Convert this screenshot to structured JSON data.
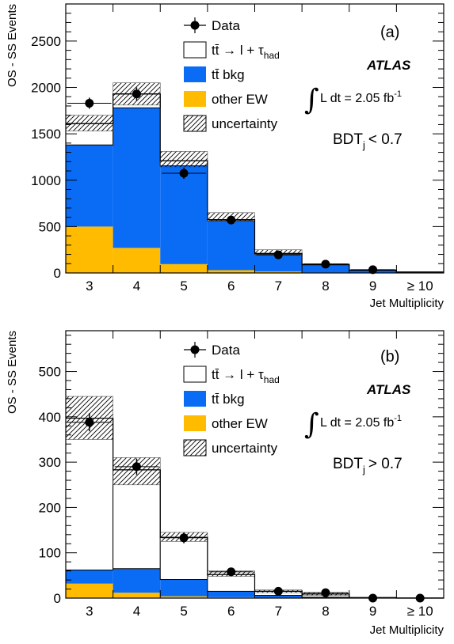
{
  "chart_data": [
    {
      "type": "bar",
      "panel_label": "(a)",
      "experiment": "ATLAS",
      "luminosity": "L dt = 2.05 fb",
      "luminosity_exp": "-1",
      "bdt_cut": "< 0.7",
      "ylabel": "OS - SS Events",
      "xlabel": "Jet Multiplicity",
      "ylim": [
        0,
        2900
      ],
      "yticks": [
        0,
        500,
        1000,
        1500,
        2000,
        2500
      ],
      "categories": [
        "3",
        "4",
        "5",
        "6",
        "7",
        "8",
        "9",
        "≥ 10"
      ],
      "series": [
        {
          "name": "other EW",
          "color": "#ffbb00",
          "values": [
            500,
            270,
            95,
            30,
            15,
            5,
            2,
            0
          ]
        },
        {
          "name": "tt̄ bkg",
          "color": "#0a6cf5",
          "values": [
            880,
            1510,
            1060,
            530,
            185,
            80,
            25,
            8
          ]
        },
        {
          "name": "tt̄ → l + τhad",
          "color": "#ffffff",
          "values": [
            230,
            150,
            55,
            15,
            10,
            5,
            3,
            2
          ]
        }
      ],
      "uncertainty": [
        [
          1530,
          1700
        ],
        [
          1810,
          2050
        ],
        [
          1140,
          1310
        ],
        [
          560,
          650
        ],
        [
          200,
          250
        ],
        [
          85,
          100
        ],
        [
          28,
          35
        ],
        [
          8,
          12
        ]
      ],
      "data": [
        1830,
        1930,
        1075,
        570,
        195,
        95,
        35,
        null
      ],
      "data_errors": [
        60,
        70,
        60,
        40,
        25,
        15,
        10,
        null
      ]
    },
    {
      "type": "bar",
      "panel_label": "(b)",
      "experiment": "ATLAS",
      "luminosity": "L dt = 2.05 fb",
      "luminosity_exp": "-1",
      "bdt_cut": "> 0.7",
      "ylabel": "OS - SS Events",
      "xlabel": "Jet Multiplicity",
      "ylim": [
        0,
        590
      ],
      "yticks": [
        0,
        100,
        200,
        300,
        400,
        500
      ],
      "categories": [
        "3",
        "4",
        "5",
        "6",
        "7",
        "8",
        "9",
        "≥ 10"
      ],
      "series": [
        {
          "name": "other EW",
          "color": "#ffbb00",
          "values": [
            32,
            12,
            4,
            2,
            1,
            0,
            0,
            0
          ]
        },
        {
          "name": "tt̄ bkg",
          "color": "#0a6cf5",
          "values": [
            30,
            53,
            37,
            13,
            5,
            2,
            0,
            0
          ]
        },
        {
          "name": "tt̄ → l + τhad",
          "color": "#ffffff",
          "values": [
            335,
            218,
            93,
            37,
            9,
            7,
            1,
            0
          ]
        }
      ],
      "uncertainty": [
        [
          350,
          445
        ],
        [
          250,
          310
        ],
        [
          125,
          145
        ],
        [
          48,
          60
        ],
        [
          12,
          18
        ],
        [
          6,
          12
        ],
        [
          0,
          2
        ],
        [
          0,
          1
        ]
      ],
      "data": [
        388,
        290,
        133,
        58,
        15,
        12,
        0,
        0
      ],
      "data_errors": [
        20,
        18,
        12,
        8,
        4,
        4,
        1,
        1
      ]
    }
  ],
  "legend": {
    "data": "Data",
    "signal_prefix": "tt̄ → l + τ",
    "signal_sub": "had",
    "ttbar": "tt̄ bkg",
    "ew": "other EW",
    "uncertainty": "uncertainty"
  },
  "bdt_prefix": "BDT",
  "bdt_sub": "j"
}
